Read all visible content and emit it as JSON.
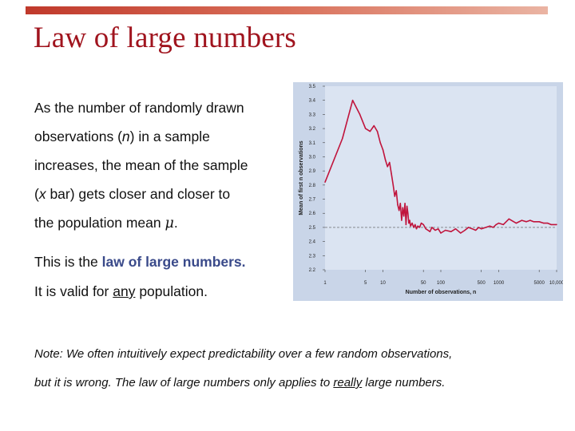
{
  "slide": {
    "title": "Law of large numbers",
    "para1": [
      "As the number of randomly drawn",
      "observations (",
      "n",
      ") in a sample",
      "increases, the mean of the sample",
      "(",
      "x",
      " bar) gets closer and closer to",
      "the population mean ",
      "μ",
      "."
    ],
    "para2": {
      "prefix": "This is the ",
      "highlight": "law of large numbers.",
      "line2_a": "It is valid for ",
      "line2_u": "any",
      "line2_b": " population."
    },
    "note": {
      "line1": "Note: We often intuitively expect predictability over a few random observations,",
      "line2_a": "but it is wrong. The law of large numbers only applies to ",
      "line2_u": "really",
      "line2_b": " large numbers."
    }
  },
  "chart_data": {
    "type": "line",
    "xlabel": "Number of observations, n",
    "ylabel": "Mean of first n observations",
    "x_scale": "log",
    "xlim": [
      1,
      10000
    ],
    "ylim": [
      2.2,
      3.5
    ],
    "x_ticks": [
      1,
      5,
      10,
      50,
      100,
      500,
      1000,
      5000,
      10000
    ],
    "x_tick_labels": [
      "1",
      "5",
      "10",
      "50",
      "100",
      "500",
      "1000",
      "5000",
      "10,000"
    ],
    "y_ticks": [
      2.2,
      2.3,
      2.4,
      2.5,
      2.6,
      2.7,
      2.8,
      2.9,
      3.0,
      3.1,
      3.2,
      3.3,
      3.4,
      3.5
    ],
    "y_tick_labels": [
      "2.2",
      "2.3",
      "2.4",
      "2.5",
      "2.6",
      "2.7",
      "2.8",
      "2.9",
      "3.0",
      "3.1",
      "3.2",
      "3.3",
      "3.4",
      "3.5"
    ],
    "reference_line": 2.5,
    "grid": false,
    "colors": {
      "line": "#c0143c",
      "plot_bg": "#dbe4f2",
      "panel_bg": "#c9d5e8",
      "reference": "#555555"
    },
    "series": [
      {
        "x": [
          1,
          2,
          3,
          4,
          5,
          6,
          7,
          8,
          9,
          10,
          11,
          12,
          13,
          14,
          15,
          16,
          17,
          18,
          19,
          20,
          21,
          22,
          23,
          24,
          25,
          26,
          27,
          28,
          29,
          30,
          32,
          34,
          36,
          38,
          40,
          43,
          46,
          50,
          55,
          60,
          65,
          70,
          80,
          90,
          100,
          120,
          150,
          180,
          220,
          260,
          300,
          350,
          400,
          450,
          500,
          600,
          700,
          800,
          900,
          1000,
          1200,
          1500,
          2000,
          2500,
          3000,
          3500,
          4000,
          5000,
          6000,
          7000,
          8000,
          10000
        ],
        "y": [
          2.82,
          3.13,
          3.4,
          3.3,
          3.2,
          3.18,
          3.22,
          3.18,
          3.1,
          3.05,
          2.98,
          2.93,
          2.96,
          2.88,
          2.8,
          2.72,
          2.76,
          2.66,
          2.62,
          2.67,
          2.55,
          2.64,
          2.58,
          2.67,
          2.52,
          2.65,
          2.6,
          2.53,
          2.55,
          2.51,
          2.53,
          2.5,
          2.52,
          2.49,
          2.51,
          2.5,
          2.53,
          2.52,
          2.49,
          2.48,
          2.47,
          2.5,
          2.48,
          2.49,
          2.46,
          2.48,
          2.47,
          2.49,
          2.46,
          2.48,
          2.5,
          2.49,
          2.48,
          2.5,
          2.49,
          2.5,
          2.51,
          2.5,
          2.52,
          2.53,
          2.52,
          2.56,
          2.53,
          2.55,
          2.54,
          2.55,
          2.54,
          2.54,
          2.53,
          2.53,
          2.52,
          2.52
        ]
      }
    ]
  }
}
